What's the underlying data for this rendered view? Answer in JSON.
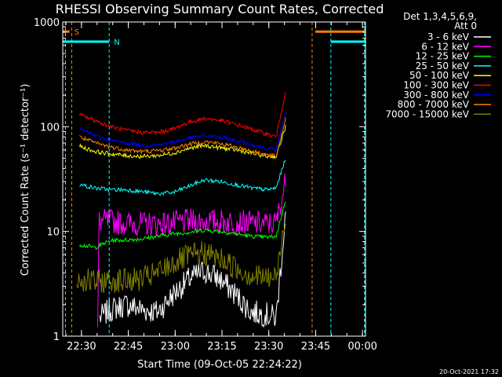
{
  "chart_data": {
    "type": "line",
    "title": "RHESSI Observing Summary Count Rates, Corrected",
    "xlabel": "Start Time (09-Oct-05 22:24:22)",
    "ylabel": "Corrected Count Rate (s⁻¹ detector⁻¹)",
    "x_axis_minutes_after_start_range": [
      -0.37,
      96.6
    ],
    "yscale": "log",
    "ylim": [
      1,
      1000
    ],
    "x_ticks": [
      "22:30",
      "22:45",
      "23:00",
      "23:15",
      "23:30",
      "23:45",
      "00:00"
    ],
    "y_ticks": [
      "1",
      "10",
      "100",
      "1000"
    ],
    "legend_header": [
      "Det 1,3,4,5,6,9,",
      "Att 0"
    ],
    "legend_position": "right",
    "series": [
      {
        "name": "3 - 6 keV",
        "color": "#ffffff",
        "x": [
          11.5,
          15,
          20,
          25,
          30,
          35,
          40,
          45,
          50,
          55,
          60,
          65,
          68,
          71
        ],
        "y": [
          1.5,
          1.8,
          2.0,
          1.8,
          1.7,
          2.5,
          3.5,
          4.2,
          3.5,
          2.5,
          1.7,
          1.6,
          1.5,
          15
        ]
      },
      {
        "name": "6 - 12 keV",
        "color": "#ff00ff",
        "x": [
          10.8,
          11.2,
          15,
          20,
          25,
          30,
          35,
          40,
          45,
          50,
          55,
          60,
          65,
          68,
          71
        ],
        "y": [
          1,
          12.5,
          12.5,
          12.0,
          11.8,
          11.8,
          12.0,
          12.5,
          12.5,
          12.5,
          12.3,
          12.0,
          11.8,
          12.0,
          30
        ]
      },
      {
        "name": "12 - 25 keV",
        "color": "#00ff00",
        "x": [
          5,
          10,
          15,
          20,
          25,
          30,
          35,
          40,
          45,
          50,
          55,
          60,
          65,
          68,
          71
        ],
        "y": [
          7.5,
          7.0,
          8.2,
          8.3,
          8.5,
          9.0,
          9.5,
          9.8,
          10.3,
          10.0,
          9.5,
          9.0,
          8.8,
          9.0,
          20
        ]
      },
      {
        "name": "25 - 50 keV",
        "color": "#00ffff",
        "x": [
          5,
          10,
          15,
          20,
          25,
          30,
          35,
          40,
          45,
          50,
          55,
          60,
          65,
          68,
          71
        ],
        "y": [
          28,
          26,
          25,
          25,
          24,
          23,
          23.5,
          27,
          31,
          30,
          28,
          26,
          25,
          26,
          50
        ]
      },
      {
        "name": "50 - 100 keV",
        "color": "#ffff00",
        "x": [
          5,
          10,
          15,
          20,
          25,
          30,
          35,
          40,
          45,
          50,
          55,
          60,
          65,
          68,
          71
        ],
        "y": [
          65,
          58,
          55,
          53,
          52,
          53,
          56,
          62,
          66,
          63,
          60,
          56,
          52,
          52,
          100
        ]
      },
      {
        "name": "100 - 300 keV",
        "color": "#ff0000",
        "x": [
          5,
          10,
          15,
          20,
          25,
          30,
          35,
          40,
          45,
          50,
          55,
          60,
          65,
          68,
          71
        ],
        "y": [
          130,
          115,
          100,
          92,
          88,
          88,
          95,
          110,
          120,
          115,
          105,
          95,
          85,
          80,
          220
        ]
      },
      {
        "name": "300 - 800 keV",
        "color": "#0000ff",
        "x": [
          5,
          10,
          15,
          20,
          25,
          30,
          35,
          40,
          45,
          50,
          55,
          60,
          65,
          68,
          71
        ],
        "y": [
          95,
          82,
          74,
          70,
          66,
          67,
          71,
          78,
          82,
          79,
          74,
          68,
          62,
          60,
          140
        ]
      },
      {
        "name": "800 - 7000 keV",
        "color": "#ff8000",
        "x": [
          5,
          10,
          15,
          20,
          25,
          30,
          35,
          40,
          45,
          50,
          55,
          60,
          65,
          68,
          71
        ],
        "y": [
          80,
          70,
          64,
          60,
          58,
          59,
          62,
          68,
          72,
          69,
          64,
          59,
          54,
          52,
          120
        ]
      },
      {
        "name": "7000 - 15000 keV",
        "color": "#808000",
        "x": [
          4,
          10,
          15,
          20,
          25,
          30,
          35,
          40,
          45,
          50,
          55,
          60,
          65,
          68,
          71
        ],
        "y": [
          3.5,
          3.3,
          3.4,
          3.4,
          3.5,
          4.0,
          5.0,
          5.8,
          6.2,
          5.5,
          4.5,
          3.8,
          3.6,
          3.6,
          15
        ]
      }
    ],
    "flags": [
      {
        "label": "S",
        "color": "#ff8000",
        "level": 810,
        "segments": [
          [
            -0.37,
            1.8
          ],
          [
            80.5,
            96.6
          ]
        ],
        "vlines": [
          2.5,
          79.5,
          96.5
        ]
      },
      {
        "label": "N",
        "color": "#00ffff",
        "level": 650,
        "segments": [
          [
            -0.37,
            14.5
          ],
          [
            85.5,
            96.6
          ]
        ],
        "vlines": [
          0.5,
          14.5,
          85.5,
          96.3
        ]
      }
    ]
  },
  "timestamp": "20-Oct-2021 17:32"
}
